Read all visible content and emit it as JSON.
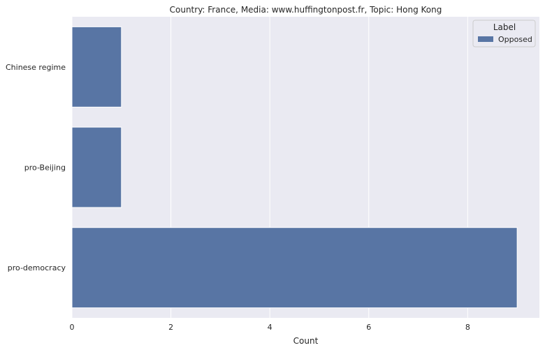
{
  "chart_data": {
    "type": "bar",
    "orientation": "horizontal",
    "title": "Country: France, Media: www.huffingtonpost.fr, Topic: Hong Kong",
    "xlabel": "Count",
    "ylabel": "",
    "categories": [
      "Chinese regime",
      "pro-Beijing",
      "pro-democracy"
    ],
    "series": [
      {
        "name": "Opposed",
        "values": [
          1,
          1,
          9
        ],
        "color": "#5875a4"
      }
    ],
    "xlim": [
      0,
      9.45
    ],
    "xticks": [
      "0",
      "2",
      "4",
      "6",
      "8"
    ],
    "grid": true,
    "legend": {
      "title": "Label",
      "placement": "top-right"
    },
    "colors": {
      "background": "#eaeaf2",
      "grid": "#ffffff",
      "bar": "#5875a4"
    }
  }
}
